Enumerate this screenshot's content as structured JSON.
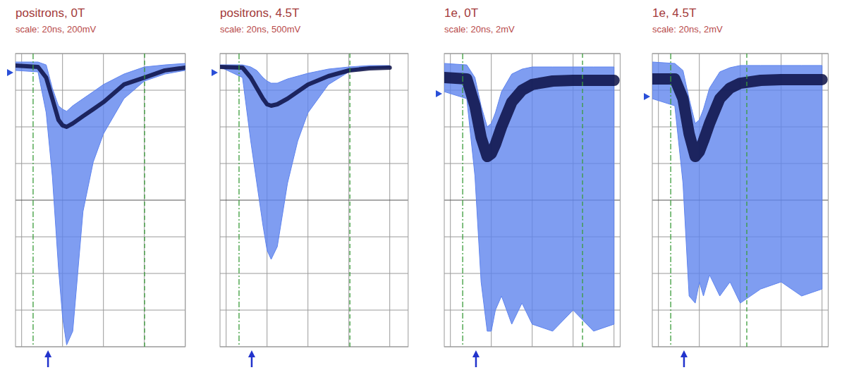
{
  "chart_data": [
    {
      "type": "line",
      "title": "positrons, 0T",
      "subtitle": "scale: 20ns, 200mV",
      "x": [
        -23,
        -12,
        -8,
        -5,
        -2,
        0,
        2,
        5,
        10,
        15,
        20,
        30,
        40,
        50,
        60
      ],
      "xlim": [
        -23,
        60
      ],
      "xticks": [
        -20,
        0,
        20,
        40,
        60
      ],
      "ylim": [
        -800,
        800
      ],
      "yticks": [
        -800,
        -600,
        -400,
        -200,
        0,
        200,
        400,
        600,
        800
      ],
      "grid": true,
      "tick_labels": false,
      "series": [
        {
          "type": "area",
          "color": "#5f84ee",
          "values": [
            708,
            700,
            477,
            131,
            -369,
            -638,
            -790,
            -715,
            -62,
            208,
            362,
            554,
            650,
            688,
            708
          ],
          "values_high": [
            754,
            754,
            738,
            612,
            515,
            496,
            485,
            515,
            554,
            592,
            631,
            688,
            727,
            738,
            746
          ]
        },
        {
          "type": "line",
          "color": "#0b0f45",
          "line_style": "solid",
          "values": [
            735,
            727,
            669,
            554,
            438,
            408,
            400,
            419,
            458,
            496,
            535,
            631,
            669,
            708,
            723
          ]
        }
      ],
      "cursor_a": -14.4,
      "cursor_b": 40.1,
      "trigger": -7.1,
      "ground_level": 696
    },
    {
      "type": "line",
      "title": "positrons, 4.5T",
      "subtitle": "scale: 20ns, 500mV",
      "x": [
        -23,
        -12,
        -8,
        -5,
        -2,
        0,
        2,
        5,
        10,
        15,
        20,
        30,
        40,
        50,
        60
      ],
      "xlim": [
        -23,
        69
      ],
      "xticks": [
        -20,
        0,
        20,
        40,
        60
      ],
      "ylim": [
        -2000,
        2000
      ],
      "yticks": [
        -2000,
        -1500,
        -1000,
        -500,
        0,
        500,
        1000,
        1500,
        2000
      ],
      "grid": true,
      "tick_labels": false,
      "series": [
        {
          "type": "area",
          "color": "#5f84ee",
          "values": [
            1817,
            1673,
            808,
            231,
            -346,
            -683,
            -808,
            -635,
            231,
            808,
            1192,
            1577,
            1750,
            1798,
            1808
          ],
          "values_high": [
            1846,
            1846,
            1817,
            1769,
            1673,
            1625,
            1596,
            1596,
            1654,
            1692,
            1731,
            1788,
            1817,
            1837,
            1837
          ]
        },
        {
          "type": "line",
          "color": "#0b0f45",
          "line_style": "solid",
          "values": [
            1817,
            1808,
            1673,
            1529,
            1385,
            1308,
            1288,
            1308,
            1385,
            1481,
            1577,
            1692,
            1769,
            1798,
            1808
          ]
        }
      ],
      "cursor_a": -13.7,
      "cursor_b": 40.5,
      "trigger": -7.5,
      "ground_level": 1740
    },
    {
      "type": "line",
      "title": "1e, 0T",
      "subtitle": "scale: 20ns, 2mV",
      "x": [
        -23,
        -12,
        -8,
        -5,
        -2,
        0,
        2,
        5,
        10,
        15,
        20,
        30,
        40,
        50,
        60
      ],
      "xlim": [
        -23,
        63
      ],
      "xticks": [
        -20,
        0,
        20,
        40,
        60
      ],
      "ylim": [
        -8,
        8
      ],
      "yticks": [
        -8,
        -6,
        -4,
        -2,
        0,
        2,
        4,
        6,
        8
      ],
      "grid": true,
      "tick_labels": false,
      "series": [
        {
          "type": "area",
          "color": "#5f84ee",
          "values": [
            5.92,
            5.54,
            1.31,
            -4.46,
            -7.15,
            -7.15,
            -6.0,
            -5.23,
            -6.77,
            -5.62,
            -6.77,
            -7.15,
            -6.0,
            -7.15,
            -6.77
          ],
          "values_high": [
            7.46,
            7.38,
            6.69,
            5.15,
            4.0,
            4.19,
            4.77,
            5.92,
            6.88,
            7.15,
            7.27,
            7.27,
            7.27,
            7.27,
            7.27
          ]
        },
        {
          "type": "line",
          "color": "#0b0f45",
          "line_style": "thick",
          "values": [
            6.69,
            6.62,
            5.15,
            3.42,
            2.38,
            2.54,
            3.04,
            4.0,
            5.35,
            6.0,
            6.31,
            6.5,
            6.54,
            6.54,
            6.54
          ]
        }
      ],
      "cursor_a": -14.0,
      "cursor_b": 44.6,
      "trigger": -7.5,
      "ground_level": 5.81
    },
    {
      "type": "line",
      "title": "1e, 4.5T",
      "subtitle": "scale: 20ns, 2mV",
      "x": [
        -23,
        -12,
        -8,
        -5,
        -2,
        0,
        2,
        5,
        10,
        15,
        20,
        30,
        40,
        50,
        60
      ],
      "xlim": [
        -23,
        63
      ],
      "xticks": [
        -20,
        0,
        20,
        40,
        60
      ],
      "ylim": [
        -8,
        8
      ],
      "yticks": [
        -8,
        -6,
        -4,
        -2,
        0,
        2,
        4,
        6,
        8
      ],
      "grid": true,
      "tick_labels": false,
      "series": [
        {
          "type": "area",
          "color": "#5f84ee",
          "values": [
            5.54,
            5.15,
            0.92,
            -5.23,
            -5.62,
            -4.46,
            -5.23,
            -4.08,
            -5.23,
            -4.46,
            -5.62,
            -4.85,
            -4.46,
            -5.23,
            -4.85
          ],
          "values_high": [
            7.54,
            7.46,
            7.08,
            5.54,
            4.19,
            4.38,
            4.96,
            6.12,
            7.0,
            7.23,
            7.35,
            7.35,
            7.35,
            7.35,
            7.35
          ]
        },
        {
          "type": "line",
          "color": "#0b0f45",
          "line_style": "thick",
          "values": [
            6.62,
            6.62,
            5.54,
            3.62,
            2.38,
            2.65,
            3.23,
            4.19,
            5.54,
            6.12,
            6.38,
            6.54,
            6.58,
            6.58,
            6.58
          ]
        }
      ],
      "cursor_a": -14.0,
      "cursor_b": 23.2,
      "trigger": -7.5,
      "ground_level": 5.65
    }
  ]
}
